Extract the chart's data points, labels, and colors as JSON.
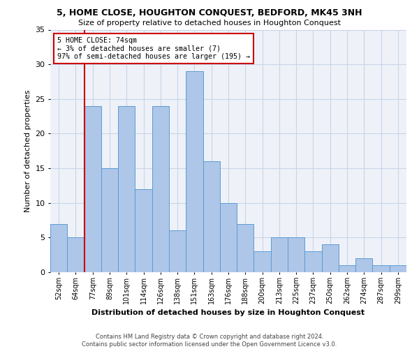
{
  "title": "5, HOME CLOSE, HOUGHTON CONQUEST, BEDFORD, MK45 3NH",
  "subtitle": "Size of property relative to detached houses in Houghton Conquest",
  "xlabel": "Distribution of detached houses by size in Houghton Conquest",
  "ylabel": "Number of detached properties",
  "footer_line1": "Contains HM Land Registry data © Crown copyright and database right 2024.",
  "footer_line2": "Contains public sector information licensed under the Open Government Licence v3.0.",
  "bin_labels": [
    "52sqm",
    "64sqm",
    "77sqm",
    "89sqm",
    "101sqm",
    "114sqm",
    "126sqm",
    "138sqm",
    "151sqm",
    "163sqm",
    "176sqm",
    "188sqm",
    "200sqm",
    "213sqm",
    "225sqm",
    "237sqm",
    "250sqm",
    "262sqm",
    "274sqm",
    "287sqm",
    "299sqm"
  ],
  "bar_heights": [
    7,
    5,
    24,
    15,
    24,
    12,
    24,
    6,
    29,
    16,
    10,
    7,
    3,
    5,
    5,
    3,
    4,
    1,
    2,
    1,
    1
  ],
  "bar_color": "#aec6e8",
  "bar_edge_color": "#5b9bd5",
  "grid_color": "#c8d4e8",
  "bg_color": "#eef2f8",
  "vline_color": "#cc0000",
  "vline_x_index": 1.5,
  "annotation_text": "5 HOME CLOSE: 74sqm\n← 3% of detached houses are smaller (7)\n97% of semi-detached houses are larger (195) →",
  "annotation_box_color": "#ffffff",
  "annotation_box_edge": "#cc0000",
  "ylim": [
    0,
    35
  ],
  "yticks": [
    0,
    5,
    10,
    15,
    20,
    25,
    30,
    35
  ]
}
